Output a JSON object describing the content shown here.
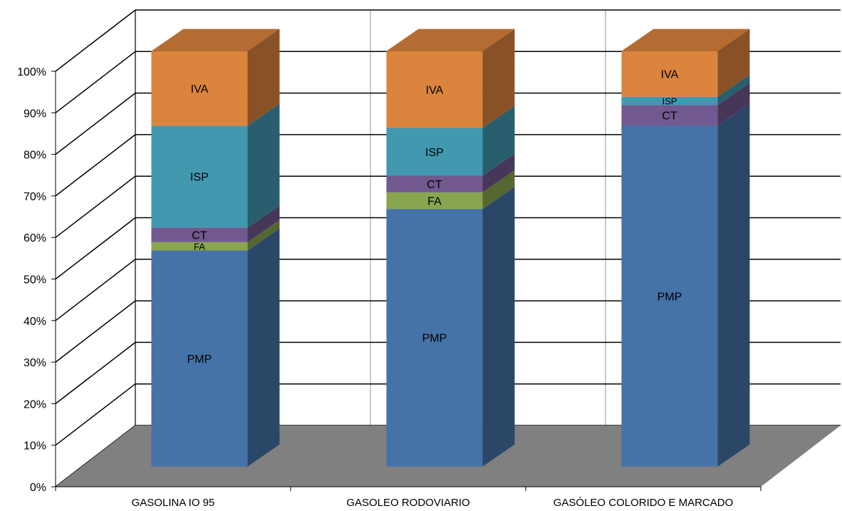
{
  "chart_data": {
    "type": "bar",
    "stacked": true,
    "three_d": true,
    "categories": [
      "GASOLINA  IO 95",
      "GASOLEO RODOVIARIO",
      "GASÓLEO COLORIDO E MARCADO"
    ],
    "series": [
      {
        "name": "PMP",
        "label": "PMP",
        "color": "#4572A7",
        "values": [
          52.0,
          62.0,
          82.0
        ]
      },
      {
        "name": "FA",
        "label": "FA",
        "color": "#89A54E",
        "values": [
          2.0,
          4.0,
          0.0
        ]
      },
      {
        "name": "CT",
        "label": "CT",
        "color": "#71588F",
        "values": [
          3.5,
          4.0,
          5.0
        ]
      },
      {
        "name": "ISP",
        "label": "ISP",
        "color": "#4198AF",
        "values": [
          24.5,
          11.5,
          2.0
        ]
      },
      {
        "name": "IVA",
        "label": "IVA",
        "color": "#DB843D",
        "values": [
          18.0,
          18.5,
          11.0
        ]
      }
    ],
    "ylim": [
      0,
      100
    ],
    "yticks": [
      "0%",
      "10%",
      "20%",
      "30%",
      "40%",
      "50%",
      "60%",
      "70%",
      "80%",
      "90%",
      "100%"
    ],
    "grid": true,
    "floor_color": "#808080",
    "xlabel": "",
    "ylabel": ""
  }
}
